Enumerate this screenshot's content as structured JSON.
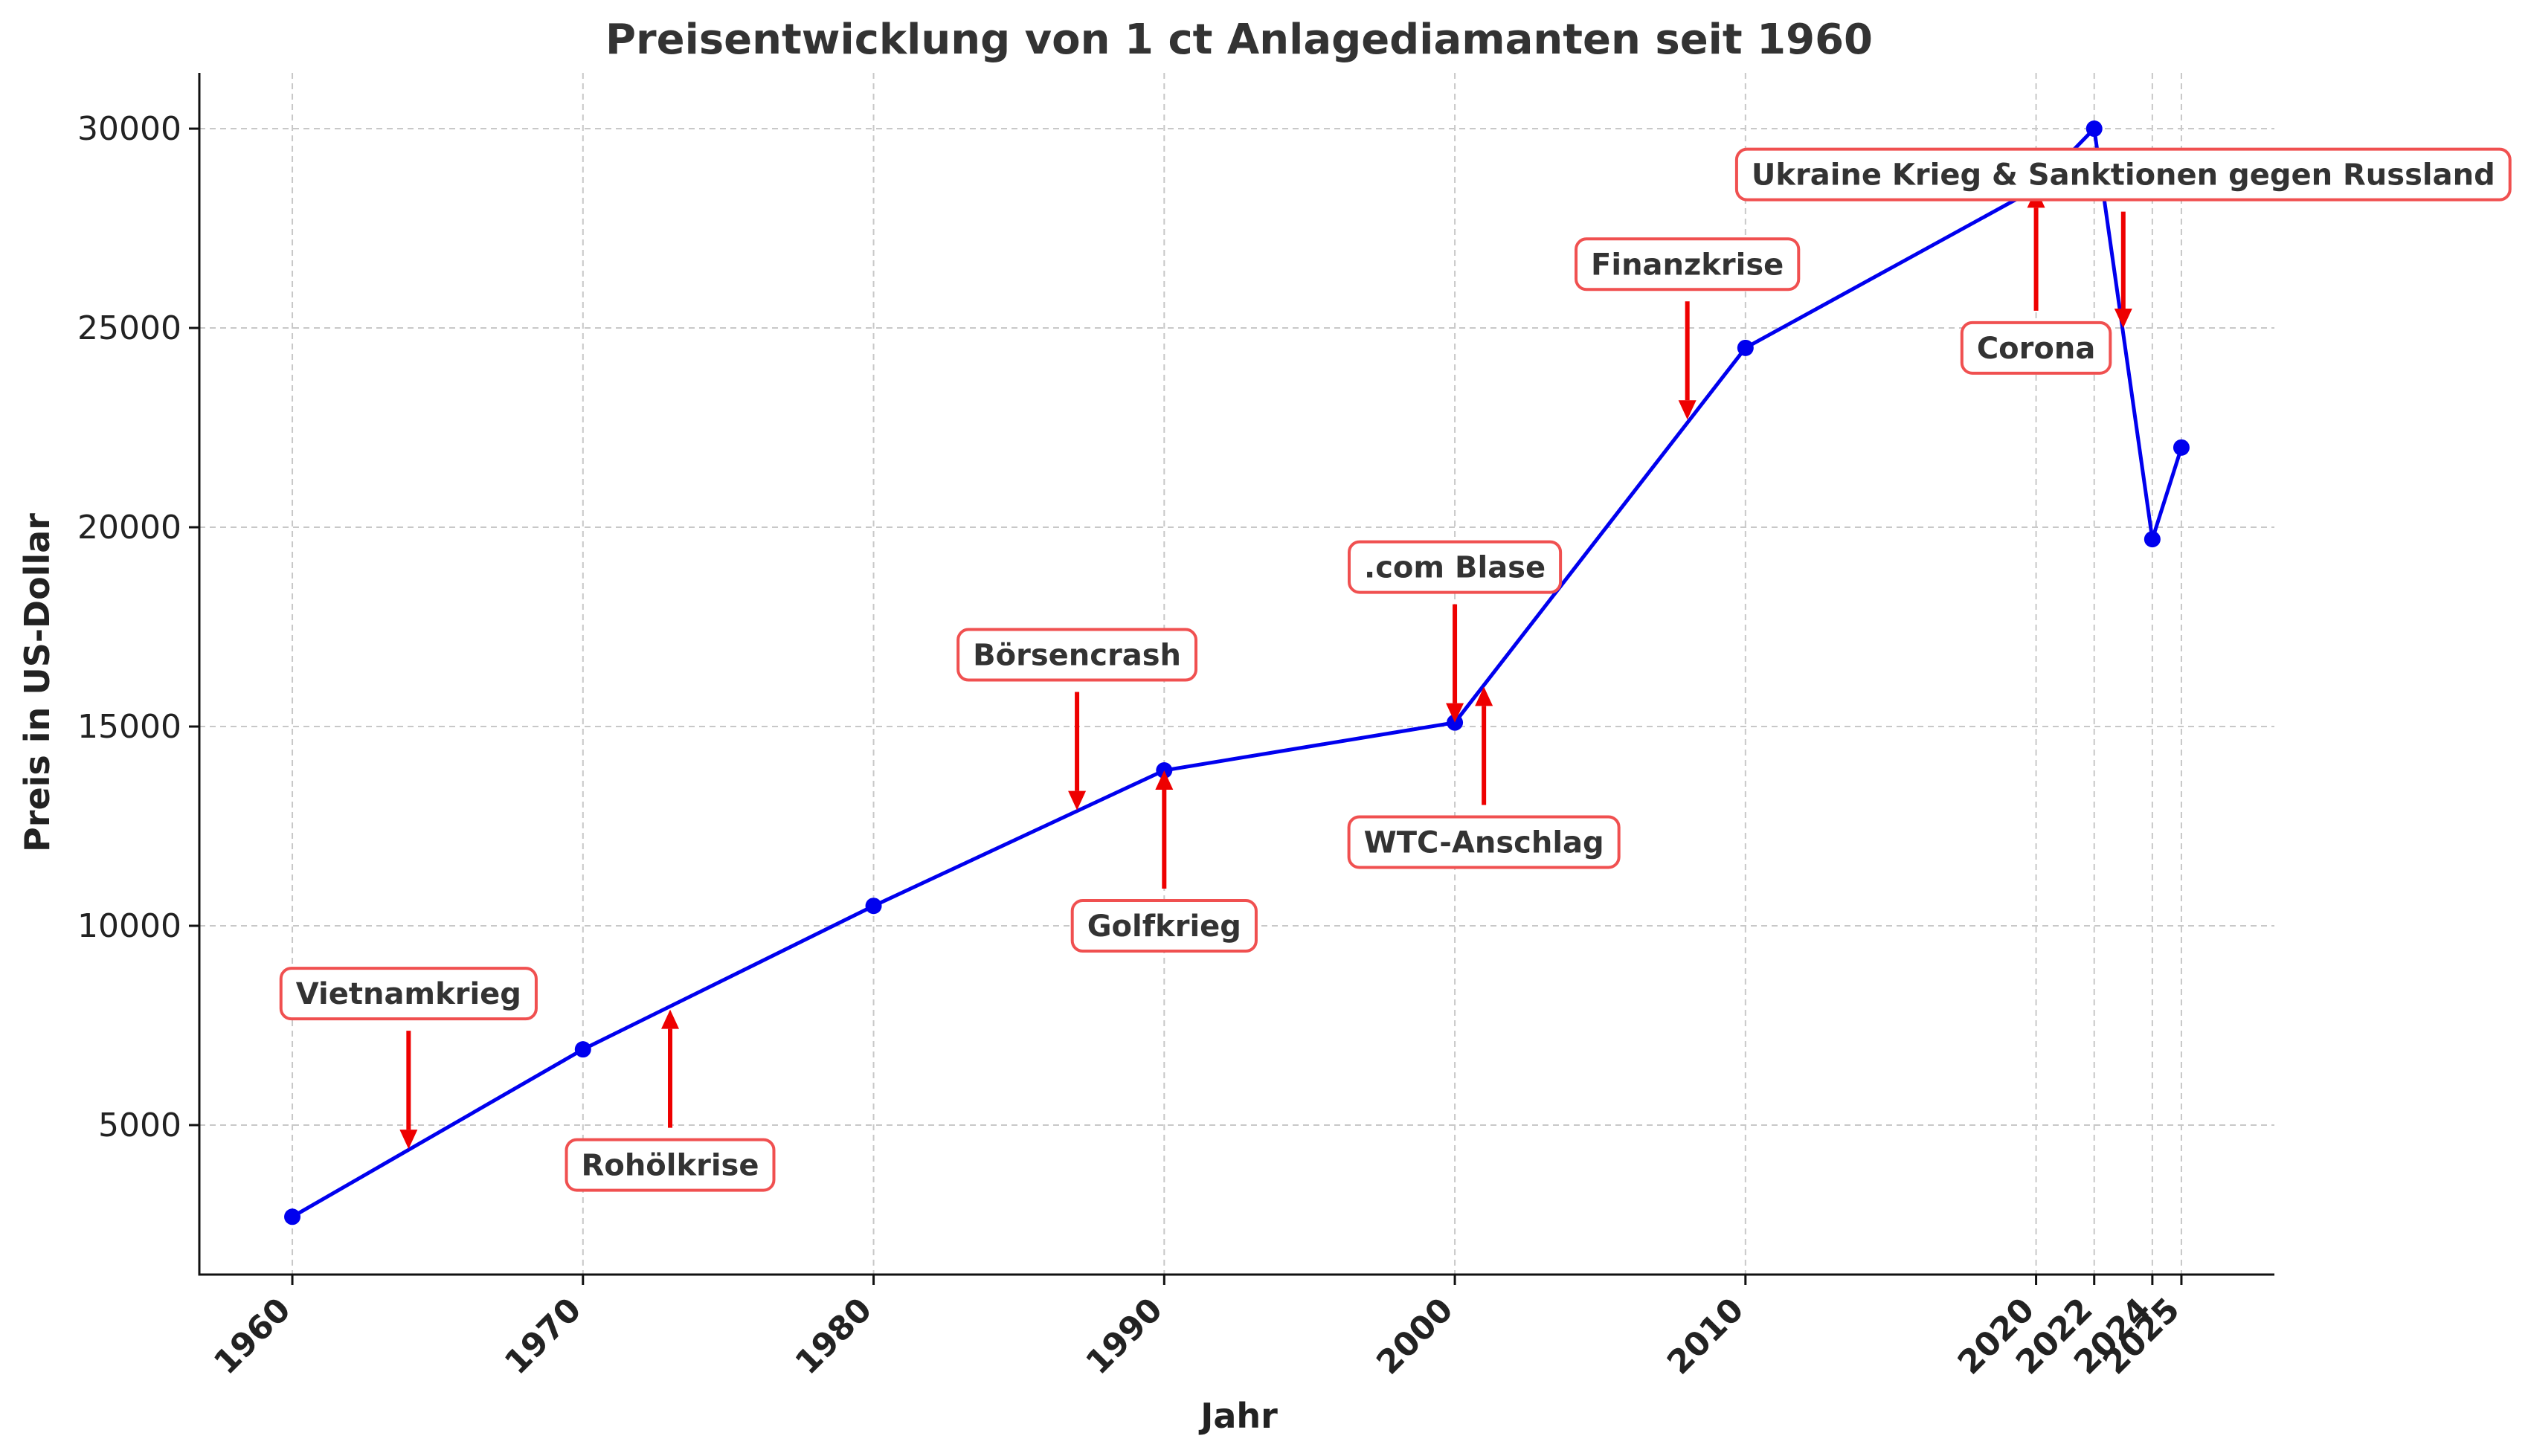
{
  "chart_data": {
    "type": "line",
    "title": "Preisentwicklung von 1 ct Anlagediamanten seit 1960",
    "xlabel": "Jahr",
    "ylabel": "Preis in US-Dollar",
    "x": [
      1960,
      1970,
      1980,
      1990,
      2000,
      2010,
      2020,
      2022,
      2024,
      2025
    ],
    "xtick_labels": [
      "1960",
      "1970",
      "1980",
      "1990",
      "2000",
      "2010",
      "2020",
      "2022",
      "2024",
      "2025"
    ],
    "series": [
      {
        "values": [
          2700,
          6900,
          10500,
          13900,
          15100,
          24500,
          28500,
          30000,
          19700,
          22000
        ]
      }
    ],
    "yticks": [
      5000,
      10000,
      15000,
      20000,
      25000,
      30000
    ],
    "xlim": [
      1956.8,
      2028.2
    ],
    "ylim": [
      1250,
      31400
    ],
    "grid": true,
    "line_color": "#0000ee",
    "annotation_color": "#ee0000",
    "annotations": [
      {
        "text": "Vietnamkrieg",
        "year": 1964,
        "value": 4400,
        "label_value": 8300,
        "direction": "down"
      },
      {
        "text": "Rohölkrise",
        "year": 1973,
        "value": 7900,
        "label_value": 4000,
        "direction": "up"
      },
      {
        "text": "Börsencrash",
        "year": 1987,
        "value": 12900,
        "label_value": 16800,
        "direction": "down"
      },
      {
        "text": "Golfkrieg",
        "year": 1990,
        "value": 13900,
        "label_value": 10000,
        "direction": "up"
      },
      {
        "text": ".com Blase",
        "year": 2000,
        "value": 15100,
        "label_value": 19000,
        "direction": "down"
      },
      {
        "text": "WTC-Anschlag",
        "year": 2001,
        "value": 16000,
        "label_value": 12100,
        "direction": "up"
      },
      {
        "text": "Finanzkrise",
        "year": 2008,
        "value": 22700,
        "label_value": 26600,
        "direction": "down"
      },
      {
        "text": "Corona",
        "year": 2020,
        "value": 28500,
        "label_value": 24500,
        "direction": "up"
      },
      {
        "text": "Ukraine Krieg & Sanktionen gegen Russland",
        "year": 2023,
        "value": 25000,
        "label_value": 28850,
        "direction": "down"
      }
    ]
  }
}
